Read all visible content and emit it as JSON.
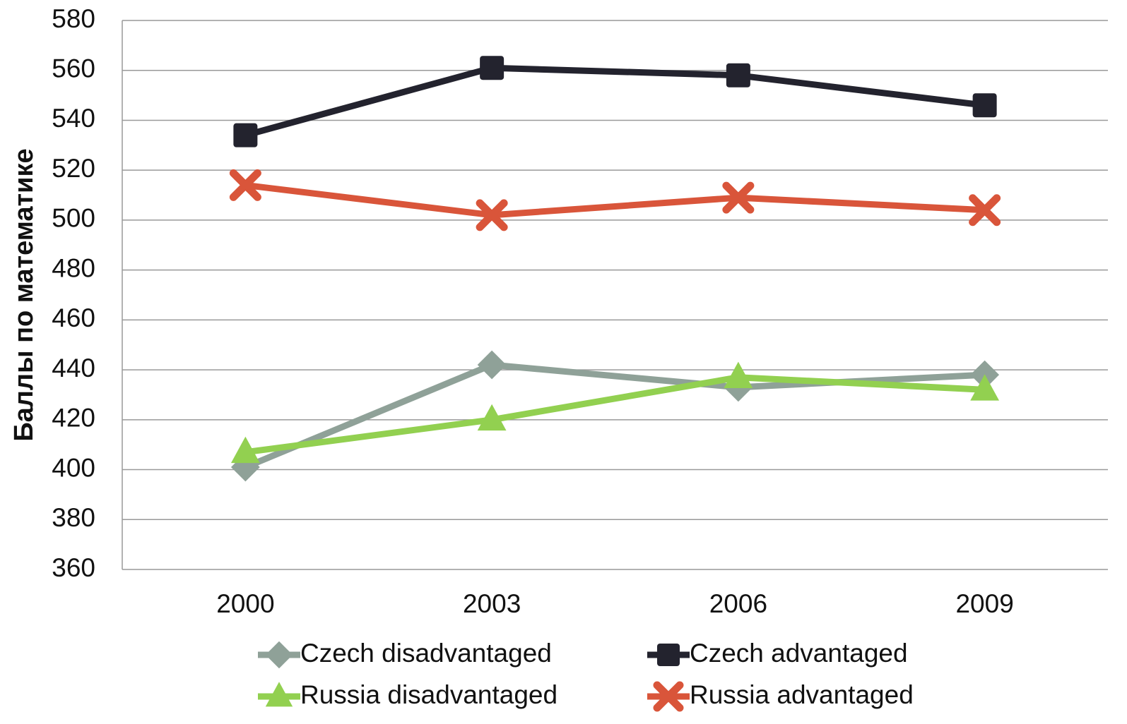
{
  "chart_data": {
    "type": "line",
    "y_label": "Баллы по математике",
    "categories": [
      "2000",
      "2003",
      "2006",
      "2009"
    ],
    "series": [
      {
        "name": "Czech disadvantaged",
        "color": "#8fa198",
        "marker": "diamond",
        "values": [
          401,
          442,
          433,
          438
        ]
      },
      {
        "name": "Czech advantaged",
        "color": "#23232e",
        "marker": "square",
        "values": [
          534,
          561,
          558,
          546
        ]
      },
      {
        "name": "Russia disadvantaged",
        "color": "#92d050",
        "marker": "triangle",
        "values": [
          407,
          420,
          437,
          432
        ]
      },
      {
        "name": "Russia advantaged",
        "color": "#d9553a",
        "marker": "x",
        "values": [
          514,
          502,
          509,
          504
        ]
      }
    ],
    "ylim": [
      360,
      580
    ],
    "yticks": [
      360,
      380,
      400,
      420,
      440,
      460,
      480,
      500,
      520,
      540,
      560,
      580
    ],
    "grid": true,
    "legend": "bottom"
  }
}
